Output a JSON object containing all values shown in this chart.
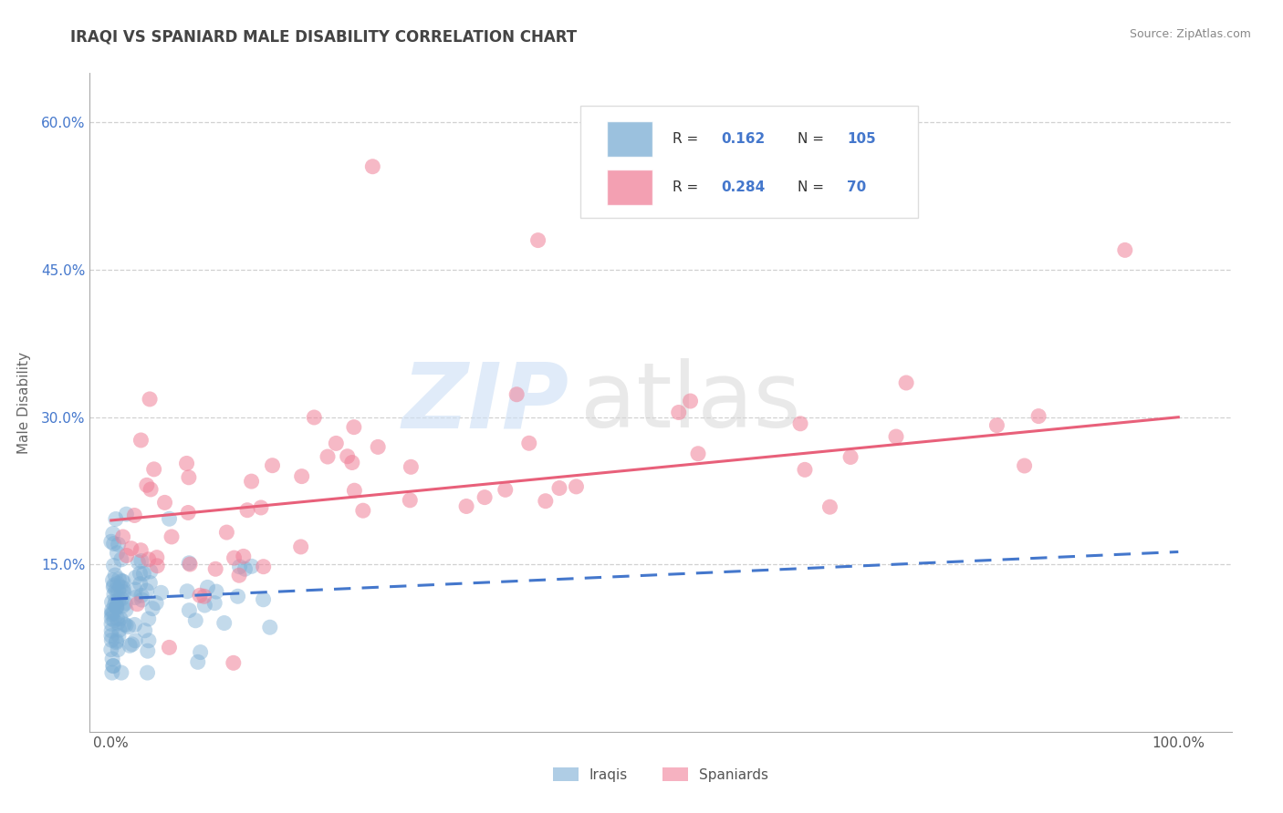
{
  "title": "IRAQI VS SPANIARD MALE DISABILITY CORRELATION CHART",
  "source": "Source: ZipAtlas.com",
  "ylabel": "Male Disability",
  "xlim": [
    -0.02,
    1.05
  ],
  "ylim": [
    -0.02,
    0.65
  ],
  "x_ticks": [
    0.0,
    1.0
  ],
  "x_tick_labels": [
    "0.0%",
    "100.0%"
  ],
  "y_ticks": [
    0.15,
    0.3,
    0.45,
    0.6
  ],
  "y_tick_labels": [
    "15.0%",
    "30.0%",
    "45.0%",
    "60.0%"
  ],
  "iraqis_color": "#7aadd4",
  "spaniards_color": "#f08098",
  "iraqis_line_color": "#4477cc",
  "spaniards_line_color": "#e8607a",
  "background_color": "#ffffff",
  "grid_color": "#cccccc",
  "title_color": "#444444",
  "tick_color": "#4477cc",
  "r_iraqi": 0.162,
  "n_iraqi": 105,
  "r_spaniard": 0.284,
  "n_spaniard": 70,
  "iraqi_intercept": 0.115,
  "iraqi_slope": 0.048,
  "spaniard_intercept": 0.195,
  "spaniard_slope": 0.105
}
